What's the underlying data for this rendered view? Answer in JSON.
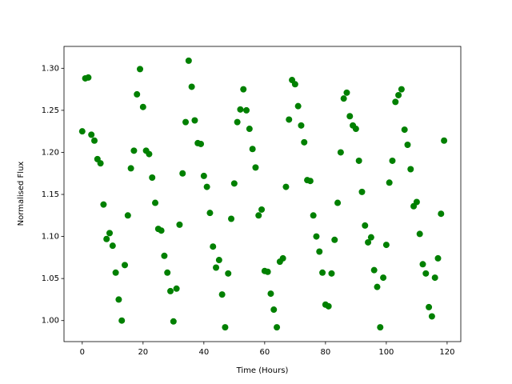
{
  "chart_data": {
    "type": "scatter",
    "xlabel": "Time (Hours)",
    "ylabel": "Normalised Flux",
    "color": "#008000",
    "x": [
      0,
      1,
      2,
      3,
      4,
      5,
      6,
      7,
      8,
      9,
      10,
      11,
      12,
      13,
      14,
      15,
      16,
      17,
      18,
      19,
      20,
      21,
      22,
      23,
      24,
      25,
      26,
      27,
      28,
      29,
      30,
      31,
      32,
      33,
      34,
      35,
      36,
      37,
      38,
      39,
      40,
      41,
      42,
      43,
      44,
      45,
      46,
      47,
      48,
      49,
      50,
      51,
      52,
      53,
      54,
      55,
      56,
      57,
      58,
      59,
      60,
      61,
      62,
      63,
      64,
      65,
      66,
      67,
      68,
      69,
      70,
      71,
      72,
      73,
      74,
      75,
      76,
      77,
      78,
      79,
      80,
      81,
      82,
      83,
      84,
      85,
      86,
      87,
      88,
      89,
      90,
      91,
      92,
      93,
      94,
      95,
      96,
      97,
      98,
      99,
      100,
      101,
      102,
      103,
      104,
      105,
      106,
      107,
      108,
      109,
      110,
      111,
      112,
      113,
      114,
      115,
      116,
      117,
      118,
      119
    ],
    "values": [
      1.225,
      1.288,
      1.289,
      1.221,
      1.214,
      1.192,
      1.187,
      1.138,
      1.097,
      1.104,
      1.089,
      1.057,
      1.025,
      1.0,
      1.066,
      1.125,
      1.181,
      1.202,
      1.269,
      1.299,
      1.254,
      1.202,
      1.198,
      1.17,
      1.14,
      1.109,
      1.107,
      1.077,
      1.057,
      1.035,
      0.999,
      1.038,
      1.114,
      1.175,
      1.236,
      1.309,
      1.278,
      1.238,
      1.211,
      1.21,
      1.172,
      1.159,
      1.128,
      1.088,
      1.063,
      1.072,
      1.031,
      0.992,
      1.056,
      1.121,
      1.163,
      1.236,
      1.251,
      1.275,
      1.25,
      1.228,
      1.204,
      1.182,
      1.125,
      1.132,
      1.059,
      1.058,
      1.032,
      1.013,
      0.992,
      1.07,
      1.074,
      1.159,
      1.239,
      1.286,
      1.281,
      1.255,
      1.232,
      1.212,
      1.167,
      1.166,
      1.125,
      1.1,
      1.082,
      1.057,
      1.019,
      1.017,
      1.056,
      1.096,
      1.14,
      1.2,
      1.264,
      1.271,
      1.243,
      1.232,
      1.228,
      1.19,
      1.153,
      1.113,
      1.093,
      1.099,
      1.06,
      1.04,
      0.992,
      1.051,
      1.09,
      1.164,
      1.19,
      1.26,
      1.268,
      1.275,
      1.227,
      1.209,
      1.18,
      1.136,
      1.141,
      1.103,
      1.067,
      1.056,
      1.016,
      1.005,
      1.051,
      1.074,
      1.127,
      1.214
    ],
    "xlim": [
      -6,
      124.5
    ],
    "ylim": [
      0.975,
      1.326
    ],
    "xticks": [
      0,
      20,
      40,
      60,
      80,
      100,
      120
    ],
    "yticks": [
      {
        "value": 1.0,
        "label": "1.00"
      },
      {
        "value": 1.05,
        "label": "1.05"
      },
      {
        "value": 1.1,
        "label": "1.10"
      },
      {
        "value": 1.15,
        "label": "1.15"
      },
      {
        "value": 1.2,
        "label": "1.20"
      },
      {
        "value": 1.25,
        "label": "1.25"
      },
      {
        "value": 1.3,
        "label": "1.30"
      }
    ]
  }
}
